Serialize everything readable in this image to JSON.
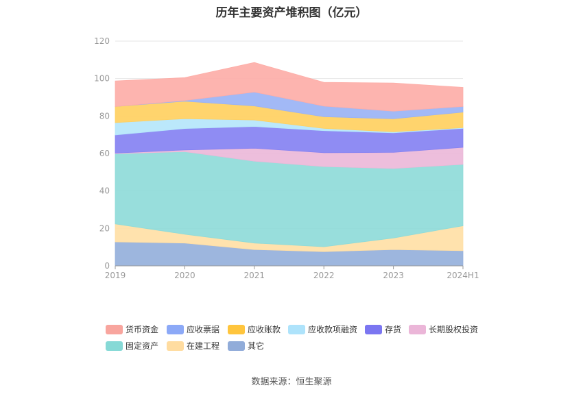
{
  "chart_data": {
    "type": "area",
    "stacked": true,
    "title": "历年主要资产堆积图（亿元）",
    "categories": [
      "2019",
      "2020",
      "2021",
      "2022",
      "2023",
      "2024H1"
    ],
    "ylim": [
      0,
      120
    ],
    "yticks": [
      0,
      20,
      40,
      60,
      80,
      100,
      120
    ],
    "grid": true,
    "legend_position": "bottom",
    "series": [
      {
        "name": "其它",
        "color": "#95b0db",
        "values": [
          12.8,
          12.2,
          8.7,
          7.6,
          8.7,
          8.1
        ]
      },
      {
        "name": "在建工程",
        "color": "#ffdfa6",
        "values": [
          9.6,
          4.7,
          3.5,
          2.6,
          6.2,
          13.3
        ]
      },
      {
        "name": "固定资产",
        "color": "#8fdbd9",
        "values": [
          37.5,
          44.1,
          43.7,
          42.8,
          37.1,
          32.8
        ]
      },
      {
        "name": "长期股权投资",
        "color": "#ecb9d9",
        "values": [
          0.3,
          0.9,
          6.9,
          7.4,
          8.6,
          9.1
        ]
      },
      {
        "name": "存货",
        "color": "#8582f2",
        "values": [
          9.7,
          11.4,
          11.6,
          11.8,
          10.4,
          10.1
        ]
      },
      {
        "name": "应收款项融资",
        "color": "#b5e6fb",
        "values": [
          6.6,
          5.3,
          3.5,
          1.2,
          0.6,
          0.4
        ]
      },
      {
        "name": "应收账款",
        "color": "#ffd061",
        "values": [
          8.6,
          9.3,
          7.5,
          6.2,
          6.9,
          8.3
        ]
      },
      {
        "name": "应收票据",
        "color": "#9ab3f5",
        "values": [
          0,
          0.4,
          7.4,
          5.7,
          4.1,
          3.0
        ]
      },
      {
        "name": "货币资金",
        "color": "#fdaea8",
        "values": [
          13.6,
          12.2,
          15.8,
          12.7,
          15.0,
          10.2
        ]
      }
    ],
    "legend_order": [
      "货币资金",
      "应收票据",
      "应收账款",
      "应收款项融资",
      "存货",
      "长期股权投资",
      "固定资产",
      "在建工程",
      "其它"
    ]
  },
  "footer": {
    "source": "数据来源：恒生聚源"
  },
  "legend_swatch_colors": {
    "货币资金": "#f8a59e",
    "应收票据": "#8ca9f7",
    "应收账款": "#ffc53d",
    "应收款项融资": "#aee3fb",
    "存货": "#7b76f1",
    "长期股权投资": "#ebb6d8",
    "固定资产": "#86d9d6",
    "在建工程": "#ffdca0",
    "其它": "#91acd9"
  }
}
